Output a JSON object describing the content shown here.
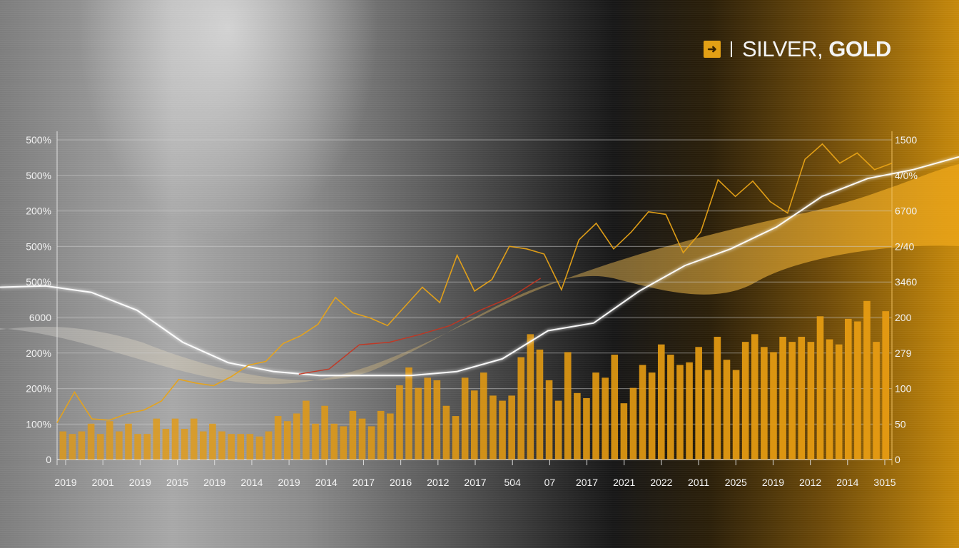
{
  "header": {
    "icon": "arrow-icon",
    "title_part1": "SILVER,",
    "title_part2": "GOLD"
  },
  "colors": {
    "gold": "#e8a317",
    "bar": "#e39a12",
    "silver_line": "#ffffff",
    "red_line": "#c8331e",
    "grid": "#cfcfcf"
  },
  "chart_data": {
    "type": "bar",
    "title": "SILVER, GOLD",
    "grid": true,
    "left_axis_ticks": [
      "500%",
      "500%",
      "200%",
      "500%",
      "500%",
      "6000",
      "200%",
      "200%",
      "100%",
      "0"
    ],
    "right_axis_ticks": [
      "1500",
      "4/0%",
      "6700",
      "2/40",
      "3460",
      "200",
      "279",
      "100",
      "50",
      "0"
    ],
    "x_tick_labels": [
      "2019",
      "2001",
      "2019",
      "2015",
      "2019",
      "2014",
      "2019",
      "2014",
      "2017",
      "2016",
      "2012",
      "2017",
      "504",
      "07",
      "2017",
      "2021",
      "2022",
      "2011",
      "2025",
      "2019",
      "2012",
      "2014",
      "3015"
    ],
    "right_ylim": [
      0,
      250
    ],
    "bars": [
      22,
      20,
      22,
      28,
      20,
      30,
      22,
      28,
      20,
      20,
      32,
      24,
      32,
      24,
      32,
      22,
      28,
      22,
      20,
      20,
      20,
      18,
      22,
      34,
      30,
      36,
      46,
      28,
      42,
      28,
      26,
      38,
      32,
      26,
      38,
      36,
      58,
      72,
      56,
      64,
      62,
      42,
      34,
      64,
      54,
      68,
      50,
      46,
      50,
      80,
      98,
      86,
      62,
      46,
      84,
      52,
      48,
      68,
      64,
      82,
      44,
      56,
      74,
      68,
      90,
      82,
      74,
      76,
      88,
      70,
      96,
      78,
      70,
      92,
      98,
      88,
      84,
      96,
      92,
      96,
      92,
      112,
      94,
      90,
      110,
      108,
      124,
      92,
      116
    ],
    "gold_series": [
      24,
      72,
      30,
      28,
      38,
      44,
      58,
      92,
      86,
      82,
      96,
      114,
      120,
      148,
      160,
      178,
      220,
      196,
      188,
      176,
      206,
      236,
      212,
      286,
      230,
      248,
      300,
      296,
      288,
      232,
      310,
      336,
      296,
      322,
      354,
      350,
      290,
      322,
      404,
      378,
      402,
      370,
      352,
      436,
      460,
      430,
      446,
      420,
      430
    ],
    "silver_line": [
      236,
      238,
      228,
      200,
      150,
      118,
      104,
      98,
      98,
      98,
      104,
      124,
      168,
      180,
      230,
      270,
      296,
      330,
      378,
      406,
      420,
      440
    ],
    "red_line": [
      null,
      null,
      null,
      null,
      null,
      null,
      null,
      null,
      100,
      108,
      146,
      150,
      162,
      176,
      200,
      220,
      250,
      null
    ]
  }
}
